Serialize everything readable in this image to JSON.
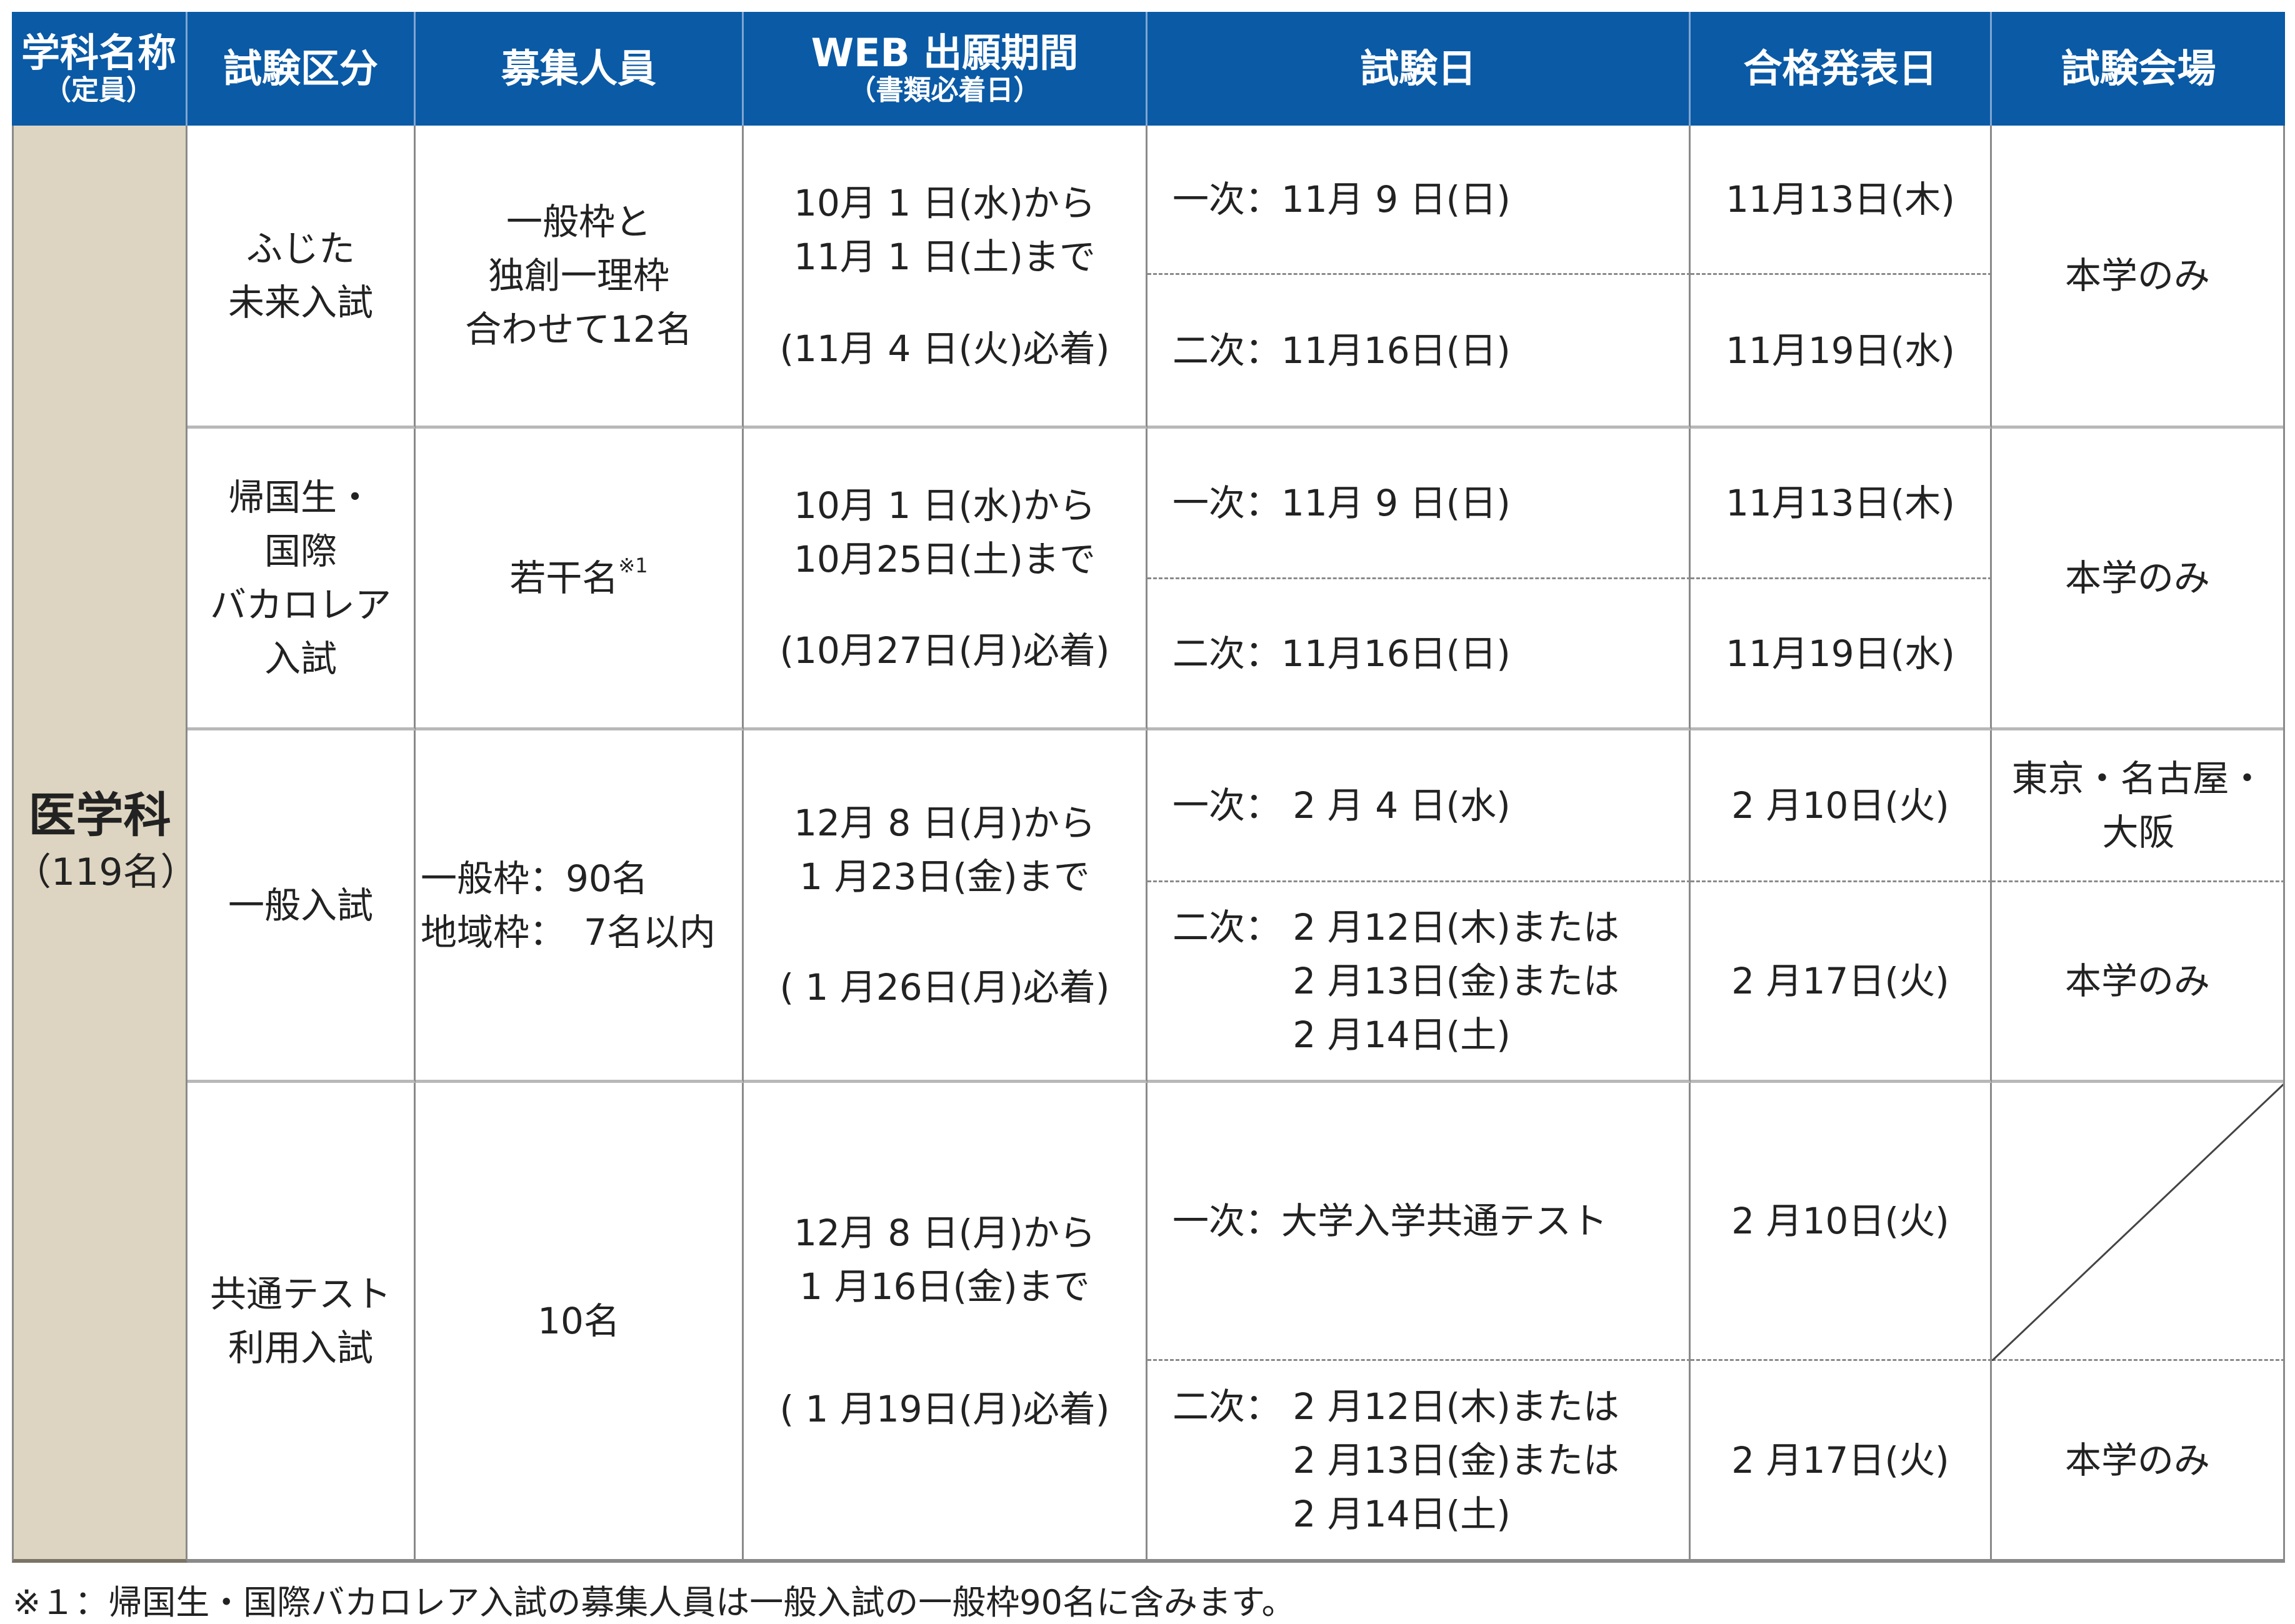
{
  "header": {
    "dept": "学科名称",
    "dept_sub": "（定員）",
    "exam_type": "試験区分",
    "capacity": "募集人員",
    "web_period": "WEB 出願期間",
    "web_period_sub": "（書類必着日）",
    "exam_date": "試験日",
    "announce": "合格発表日",
    "venue": "試験会場"
  },
  "department": {
    "name": "医学科",
    "capacity": "（119名）"
  },
  "rows": [
    {
      "type": "ふじた\n未来入試",
      "capacity": "一般枠と\n独創一理枠\n合わせて12名",
      "period": "10月 1 日(水)から\n11月 1 日(土)まで",
      "deadline": "(11月 4 日(火)必着)",
      "first": "一次：11月 9 日(日)",
      "second": "二次：11月16日(日)",
      "announce1": "11月13日(木)",
      "announce2": "11月19日(水)",
      "venue": "本学のみ"
    },
    {
      "type": "帰国生・\n国際\nバカロレア\n入試",
      "capacity": "若干名",
      "capacity_note": "※1",
      "period": "10月 1 日(水)から\n10月25日(土)まで",
      "deadline": "(10月27日(月)必着)",
      "first": "一次：11月 9 日(日)",
      "second": "二次：11月16日(日)",
      "announce1": "11月13日(木)",
      "announce2": "11月19日(水)",
      "venue": "本学のみ"
    },
    {
      "type": "一般入試",
      "capacity": "一般枠：90名\n地域枠：　7名以内",
      "period": "12月 8 日(月)から\n1 月23日(金)まで",
      "deadline": "( 1 月26日(月)必着)",
      "first": "一次： 2 月 4 日(水)",
      "second": "二次： 2 月12日(木)または\n　　　 2 月13日(金)または\n　　　 2 月14日(土)",
      "announce1": "2 月10日(火)",
      "announce2": "2 月17日(火)",
      "venue1": "東京・名古屋・\n大阪",
      "venue2": "本学のみ"
    },
    {
      "type": "共通テスト\n利用入試",
      "capacity": "10名",
      "period": "12月 8 日(月)から\n1 月16日(金)まで",
      "deadline": "( 1 月19日(月)必着)",
      "first": "一次：大学入学共通テスト",
      "second": "二次： 2 月12日(木)または\n　　　 2 月13日(金)または\n　　　 2 月14日(土)",
      "announce1": "2 月10日(火)",
      "announce2": "2 月17日(火)",
      "venue2": "本学のみ"
    }
  ],
  "footnote": "※１：帰国生・国際バカロレア入試の募集人員は一般入試の一般枠90名に含みます。",
  "colors": {
    "header_bg": "#0a5aa6",
    "dept_bg": "#ddd5c1"
  }
}
